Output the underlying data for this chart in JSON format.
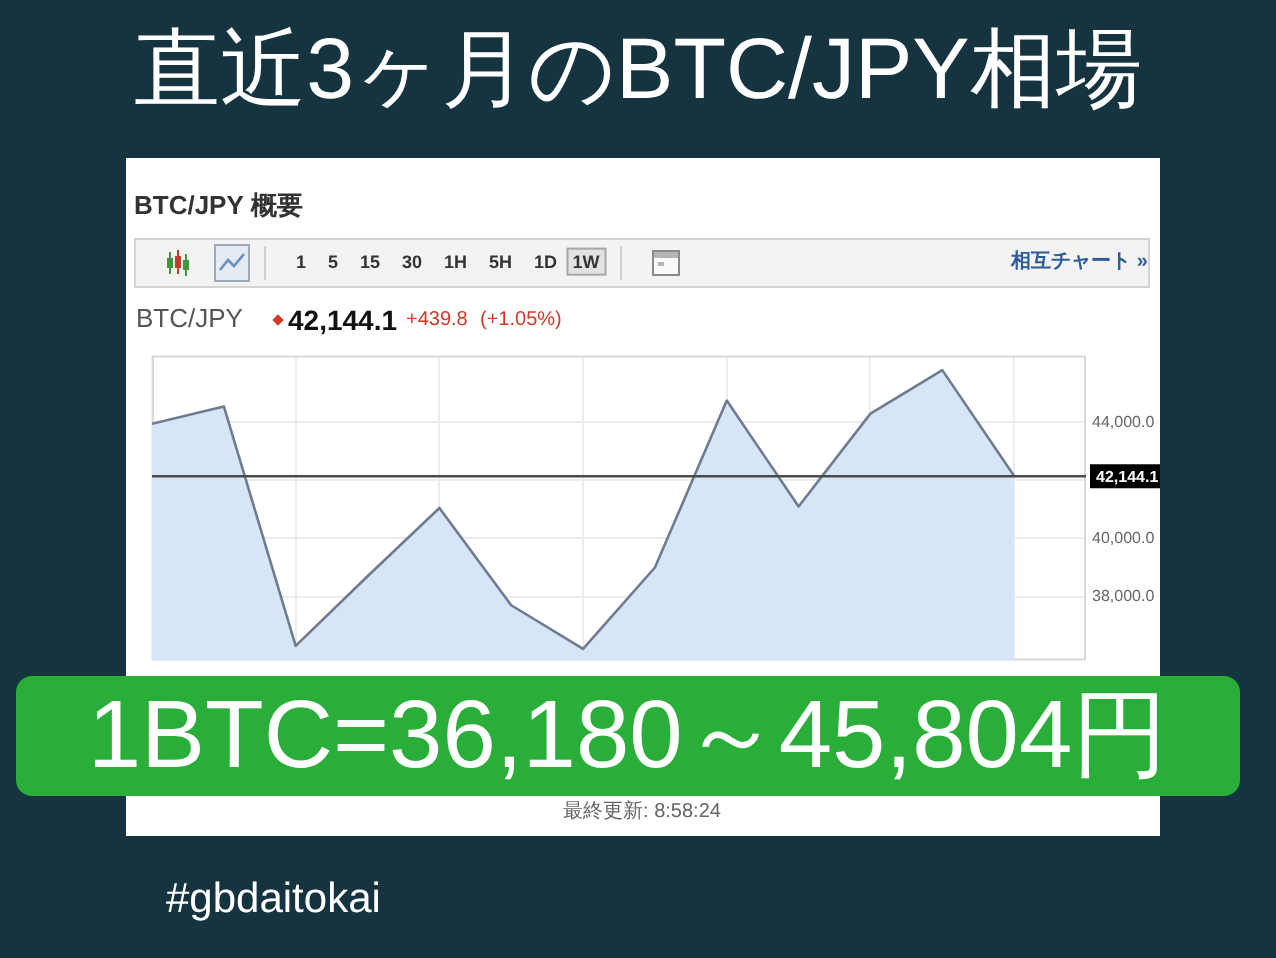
{
  "chart_data": {
    "type": "area",
    "title": "直近3ヶ月のBTC/JPY相場",
    "subtitle": "BTC/JPY 概要",
    "categories": [
      null,
      null,
      null,
      null,
      null,
      null,
      null,
      null,
      null,
      null,
      null,
      null,
      null
    ],
    "values": [
      43950,
      44550,
      36300,
      38700,
      41050,
      37700,
      36200,
      39000,
      44750,
      41100,
      44300,
      45800,
      42150
    ],
    "color": "#d6e6f7",
    "ylim": [
      35800,
      46300
    ],
    "yticks": [
      {
        "value": 38000,
        "label": "38,000.0"
      },
      {
        "value": 40000,
        "label": "40,000.0"
      },
      {
        "value": 42000,
        "label": null
      },
      {
        "value": 44000,
        "label": "44,000.0"
      }
    ],
    "ref_lines": [
      {
        "axis": "y",
        "value": 42144.1,
        "label": "42,144.1",
        "color": "#4a4a4a"
      }
    ],
    "grid": true,
    "tick_labels": "y",
    "annotations": [
      "1 5 15 30 1H 5H 1D",
      "1W",
      "相互チャート »",
      "BTC/JPY",
      "42,144.1",
      "+439.8",
      "(+1.05%)",
      "最終更新: 8:58:24",
      "1BTC=36,180～45,804円",
      "#gbdaitokai"
    ]
  }
}
